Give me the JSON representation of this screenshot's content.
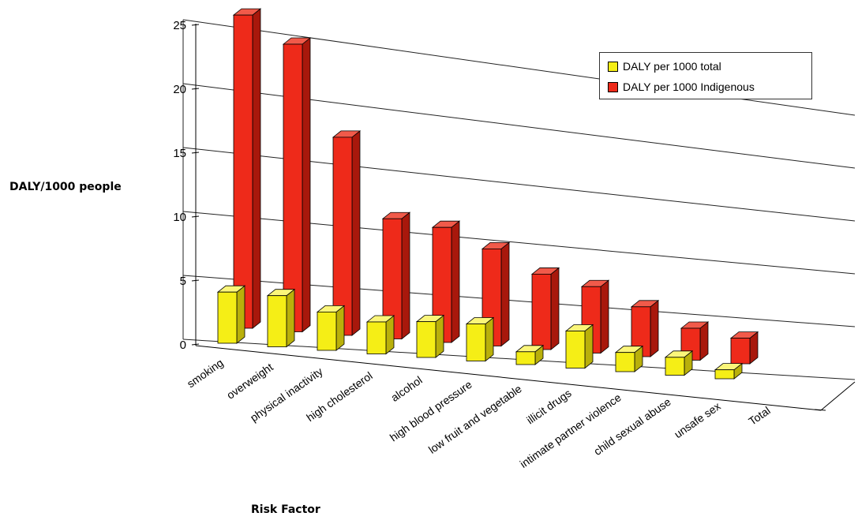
{
  "chart_data": {
    "type": "bar",
    "categories": [
      "smoking",
      "overweight",
      "physical inactivity",
      "high cholesterol",
      "alcohol",
      "high blood pressure",
      "low fruit and vegetable",
      "illicit drugs",
      "intimate partner violence",
      "child sexual abuse",
      "unsafe sex",
      "Total"
    ],
    "series": [
      {
        "name": "DALY per 1000 total",
        "values": [
          4,
          4,
          3,
          2.5,
          2.8,
          2.9,
          1,
          2.9,
          1.5,
          1.4,
          0.7,
          null
        ]
      },
      {
        "name": "DALY per 1000 Indigenous",
        "values": [
          24.5,
          22.5,
          15.5,
          9.4,
          9.0,
          7.6,
          5.9,
          5.2,
          3.9,
          2.5,
          2.0,
          null
        ]
      }
    ],
    "ylabel": "DALY/1000 people",
    "xlabel": "Risk Factor",
    "ylim": [
      0,
      25
    ],
    "yticks": [
      "0",
      "5",
      "10",
      "15",
      "20",
      "25"
    ],
    "grid": true,
    "legend_position": "top-right",
    "colors": {
      "total": "#f5ee16",
      "indigenous": "#ee2a1a"
    }
  }
}
